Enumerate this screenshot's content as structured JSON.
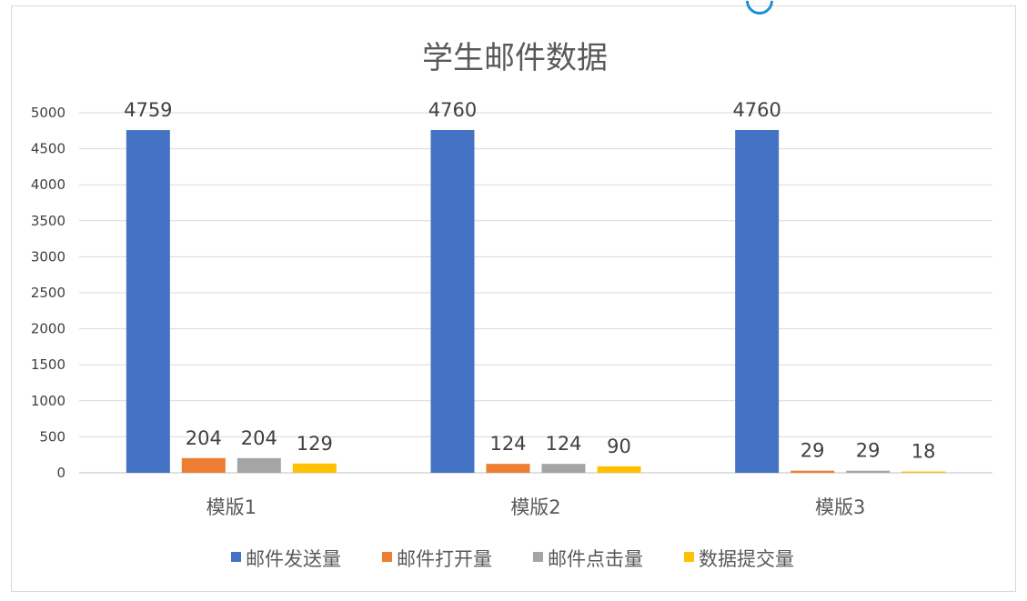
{
  "chart_data": {
    "type": "bar",
    "title": "学生邮件数据",
    "categories": [
      "模版1",
      "模版2",
      "模版3"
    ],
    "series": [
      {
        "name": "邮件发送量",
        "color": "#4472c4",
        "values": [
          4759,
          4760,
          4760
        ]
      },
      {
        "name": "邮件打开量",
        "color": "#ed7d31",
        "values": [
          204,
          124,
          29
        ]
      },
      {
        "name": "邮件点击量",
        "color": "#a5a5a5",
        "values": [
          204,
          124,
          29
        ]
      },
      {
        "name": "数据提交量",
        "color": "#ffc000",
        "values": [
          129,
          90,
          18
        ]
      }
    ],
    "ylim": [
      0,
      5000
    ],
    "yticks": [
      0,
      500,
      1000,
      1500,
      2000,
      2500,
      3000,
      3500,
      4000,
      4500,
      5000
    ],
    "grid": true,
    "legend": "bottom",
    "data_labels": true
  }
}
